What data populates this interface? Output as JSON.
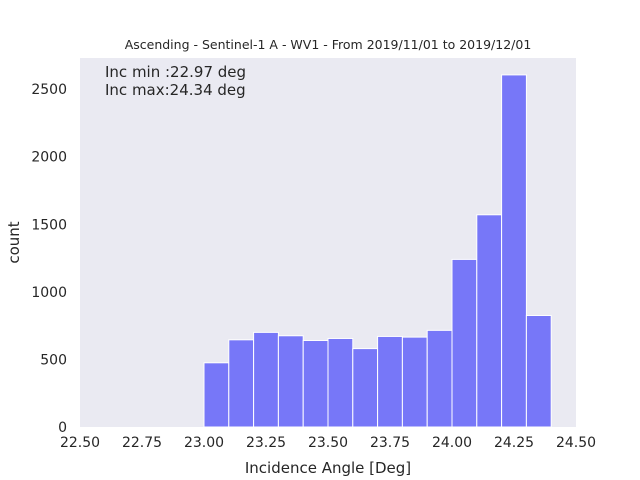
{
  "chart_data": {
    "type": "bar",
    "title": "Ascending - Sentinel-1 A - WV1 - From 2019/11/01 to 2019/12/01",
    "xlabel": "Incidence Angle [Deg]",
    "ylabel": "count",
    "xlim": [
      22.5,
      24.5
    ],
    "ylim": [
      0,
      2730
    ],
    "xticks": [
      "22.50",
      "22.75",
      "23.00",
      "23.25",
      "23.50",
      "23.75",
      "24.00",
      "24.25",
      "24.50"
    ],
    "yticks": [
      "0",
      "500",
      "1000",
      "1500",
      "2000",
      "2500"
    ],
    "grid": false,
    "bar_color": "#7777f8",
    "background_color": "#eaeaf2",
    "annotations": [
      "Inc min :22.97 deg",
      "Inc max:24.34 deg"
    ],
    "bins": [
      {
        "x0": 23.0,
        "x1": 23.1,
        "value": 475
      },
      {
        "x0": 23.1,
        "x1": 23.2,
        "value": 645
      },
      {
        "x0": 23.2,
        "x1": 23.3,
        "value": 700
      },
      {
        "x0": 23.3,
        "x1": 23.4,
        "value": 675
      },
      {
        "x0": 23.4,
        "x1": 23.5,
        "value": 640
      },
      {
        "x0": 23.5,
        "x1": 23.6,
        "value": 655
      },
      {
        "x0": 23.6,
        "x1": 23.7,
        "value": 580
      },
      {
        "x0": 23.7,
        "x1": 23.8,
        "value": 670
      },
      {
        "x0": 23.8,
        "x1": 23.9,
        "value": 665
      },
      {
        "x0": 23.9,
        "x1": 24.0,
        "value": 715
      },
      {
        "x0": 24.0,
        "x1": 24.1,
        "value": 1240
      },
      {
        "x0": 24.1,
        "x1": 24.2,
        "value": 1570
      },
      {
        "x0": 24.2,
        "x1": 24.3,
        "value": 2605
      },
      {
        "x0": 24.3,
        "x1": 24.4,
        "value": 825
      }
    ]
  }
}
